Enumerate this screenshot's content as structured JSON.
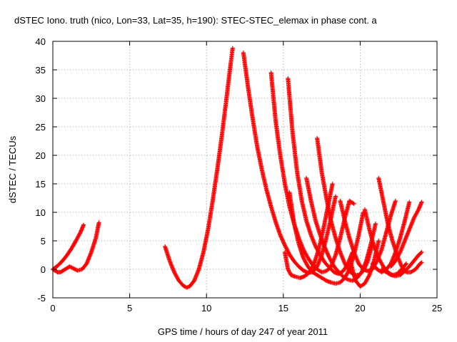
{
  "chart_data": {
    "type": "scatter",
    "title": "dSTEC Iono. truth (nico, Lon=33, Lat=35, h=190): STEC-STEC_elemax in phase cont. a",
    "xlabel": "GPS time / hours of day 247 of year 2011",
    "ylabel": "dSTEC  / TECUs",
    "xlim": [
      0,
      25
    ],
    "ylim": [
      -5,
      40
    ],
    "xticks": [
      0,
      5,
      10,
      15,
      20,
      25
    ],
    "yticks": [
      -5,
      0,
      5,
      10,
      15,
      20,
      25,
      30,
      35,
      40
    ],
    "grid": true,
    "marker": "plus",
    "color": "#ff0000",
    "series": [
      {
        "x": [
          0.0,
          0.3,
          0.6,
          0.9,
          1.2,
          1.5,
          1.8,
          2.0
        ],
        "y": [
          0.0,
          0.6,
          1.4,
          2.4,
          3.6,
          5.0,
          6.5,
          7.8
        ]
      },
      {
        "x": [
          0.0,
          0.3,
          0.5,
          0.8,
          1.1,
          1.3,
          1.6,
          1.9,
          2.2,
          2.5,
          2.8,
          3.0
        ],
        "y": [
          0.0,
          -0.5,
          -0.5,
          0.0,
          0.5,
          0.2,
          -0.2,
          0.0,
          1.0,
          3.0,
          5.5,
          8.2
        ]
      },
      {
        "x": [
          7.3,
          7.6,
          7.9,
          8.2,
          8.5,
          8.7,
          8.9,
          9.2,
          9.5,
          9.8,
          10.1,
          10.4,
          10.7,
          11.0,
          11.3,
          11.5,
          11.7
        ],
        "y": [
          4.0,
          1.5,
          -0.5,
          -2.0,
          -2.9,
          -3.2,
          -3.0,
          -2.0,
          0.0,
          3.0,
          7.0,
          12.0,
          17.5,
          23.5,
          30.0,
          34.5,
          38.8
        ]
      },
      {
        "x": [
          12.4,
          12.7,
          13.0,
          13.3,
          13.6,
          13.9,
          14.2,
          14.5,
          14.8,
          15.1,
          15.4,
          15.7,
          16.0,
          16.3,
          16.6,
          16.9,
          17.2,
          17.5,
          17.8,
          18.1,
          18.4
        ],
        "y": [
          38.0,
          32.0,
          26.5,
          21.5,
          17.5,
          14.0,
          11.0,
          8.3,
          6.0,
          4.2,
          2.6,
          1.4,
          0.5,
          -0.2,
          -0.6,
          -0.5,
          0.5,
          2.5,
          5.5,
          9.0,
          12.8
        ]
      },
      {
        "x": [
          14.2,
          14.5,
          14.8,
          15.1,
          15.4,
          15.7,
          16.0,
          16.3,
          16.6,
          16.9,
          17.2,
          17.5,
          17.8,
          18.1,
          18.4,
          18.7,
          19.0,
          19.3,
          19.6
        ],
        "y": [
          34.5,
          26.0,
          20.0,
          15.0,
          11.0,
          8.0,
          5.5,
          3.5,
          2.0,
          0.8,
          0.0,
          -0.5,
          -0.3,
          0.5,
          2.5,
          5.5,
          9.0,
          12.0,
          11.5
        ]
      },
      {
        "x": [
          15.3,
          15.6,
          15.9,
          16.2,
          16.5,
          16.8,
          17.1,
          17.4,
          17.7,
          18.0,
          18.3,
          18.6,
          18.9,
          19.2,
          19.5
        ],
        "y": [
          33.5,
          24.0,
          17.0,
          12.0,
          8.5,
          6.0,
          4.0,
          2.5,
          1.2,
          0.3,
          -0.5,
          -0.8,
          -0.3,
          1.0,
          3.0
        ]
      },
      {
        "x": [
          15.1,
          15.3,
          15.5,
          15.8,
          16.1,
          16.4,
          16.7,
          17.0,
          17.3,
          17.6,
          17.9,
          18.2
        ],
        "y": [
          3.0,
          0.0,
          -1.0,
          -1.3,
          -1.5,
          -1.2,
          -0.5,
          1.0,
          3.5,
          7.0,
          11.0,
          15.0
        ]
      },
      {
        "x": [
          15.4,
          15.7,
          16.0,
          16.3,
          16.6,
          16.9,
          17.2,
          17.5,
          17.8,
          18.1,
          18.4,
          18.7,
          19.0,
          19.3,
          19.6,
          19.9,
          20.2
        ],
        "y": [
          13.5,
          8.0,
          4.5,
          2.0,
          0.5,
          -0.5,
          -1.0,
          -1.5,
          -2.0,
          -2.3,
          -2.5,
          -2.3,
          -1.5,
          0.0,
          2.5,
          6.0,
          10.0
        ]
      },
      {
        "x": [
          17.2,
          17.5,
          17.8,
          18.1,
          18.4,
          18.7,
          19.0,
          19.3,
          19.6,
          19.9,
          20.2,
          20.5,
          20.8
        ],
        "y": [
          23.0,
          17.0,
          12.5,
          8.5,
          5.5,
          3.0,
          1.0,
          -0.3,
          -1.0,
          -1.0,
          -0.3,
          1.5,
          4.5
        ]
      },
      {
        "x": [
          16.5,
          16.8,
          17.1,
          17.4,
          17.7,
          18.0,
          18.3,
          18.6,
          18.9,
          19.2,
          19.5,
          19.8,
          20.1,
          20.4,
          20.7,
          21.0
        ],
        "y": [
          16.0,
          12.0,
          8.5,
          6.0,
          3.8,
          2.0,
          0.5,
          -0.5,
          -1.3,
          -1.8,
          -2.0,
          -1.5,
          -0.5,
          1.5,
          4.5,
          8.0
        ]
      },
      {
        "x": [
          18.7,
          19.0,
          19.3,
          19.6,
          19.9,
          20.2,
          20.5,
          20.8,
          21.1,
          21.4,
          21.7,
          22.0,
          22.3
        ],
        "y": [
          12.0,
          8.5,
          5.5,
          3.0,
          1.0,
          0.0,
          -0.3,
          0.0,
          1.5,
          3.5,
          6.5,
          9.5,
          12.0
        ]
      },
      {
        "x": [
          19.4,
          19.7,
          20.0,
          20.3,
          20.6,
          20.9,
          21.2
        ],
        "y": [
          1.0,
          -2.0,
          -3.0,
          -2.5,
          -1.0,
          1.5,
          5.0
        ]
      },
      {
        "x": [
          20.3,
          20.6,
          20.9,
          21.2,
          21.5,
          21.8,
          22.1,
          22.4,
          22.7,
          23.0
        ],
        "y": [
          10.5,
          7.0,
          4.0,
          2.0,
          0.5,
          -0.5,
          -1.0,
          -0.8,
          0.0,
          1.0
        ]
      },
      {
        "x": [
          21.2,
          21.5,
          21.8,
          22.1,
          22.4,
          22.7,
          23.0,
          23.3,
          23.6,
          23.9,
          24.0
        ],
        "y": [
          16.0,
          12.0,
          8.0,
          5.0,
          2.5,
          0.5,
          -0.5,
          -0.5,
          0.0,
          1.0,
          1.2
        ]
      },
      {
        "x": [
          21.4,
          21.7,
          22.0,
          22.3,
          22.6,
          22.9,
          23.2,
          23.5,
          23.8,
          24.0
        ],
        "y": [
          0.0,
          -0.5,
          -1.0,
          -1.2,
          -1.0,
          -0.3,
          0.5,
          1.5,
          2.5,
          3.0
        ]
      },
      {
        "x": [
          22.0,
          22.3,
          22.6,
          22.9,
          23.2,
          23.5,
          23.8,
          24.0
        ],
        "y": [
          0.5,
          1.5,
          3.0,
          5.0,
          7.0,
          9.0,
          10.5,
          11.8
        ]
      },
      {
        "x": [
          20.8,
          21.1,
          21.4,
          21.7,
          22.0,
          22.3,
          22.6,
          22.9,
          23.2
        ],
        "y": [
          1.0,
          0.0,
          -0.5,
          0.0,
          1.0,
          3.0,
          5.5,
          8.5,
          11.8
        ]
      }
    ]
  }
}
